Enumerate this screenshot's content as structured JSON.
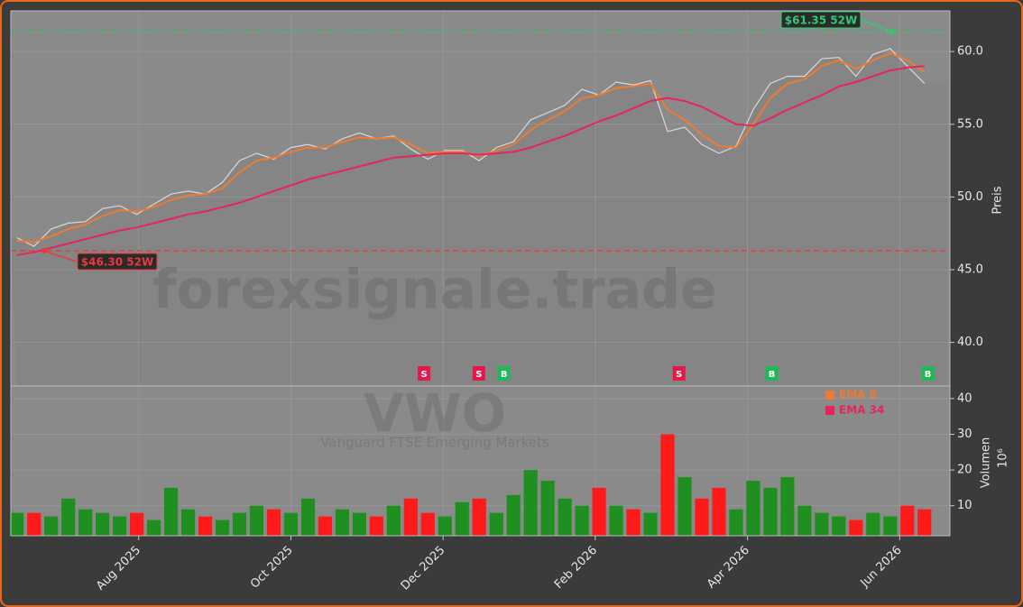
{
  "chart_data": {
    "type": "line",
    "watermark": "forexsignale.trade",
    "ticker": "VWO",
    "fund_name": "Vanguard FTSE Emerging Markets",
    "y_label": "Preis",
    "volume_label": "Volumen",
    "volume_unit": "10⁶",
    "x": [
      6.4,
      6.625,
      6.85,
      7.075,
      7.3,
      7.525,
      7.75,
      7.975,
      8.2,
      8.425,
      8.65,
      8.875,
      9.1,
      9.325,
      9.55,
      9.775,
      10,
      10.225,
      10.45,
      10.675,
      10.9,
      11.125,
      11.35,
      11.575,
      11.8,
      12.025,
      12.25,
      12.475,
      12.7,
      12.925,
      13.15,
      13.375,
      13.6,
      13.825,
      14.05,
      14.275,
      14.5,
      14.725,
      14.95,
      15.175,
      15.4,
      15.625,
      15.85,
      16.075,
      16.3,
      16.525,
      16.75,
      16.975,
      17.2,
      17.425,
      17.65,
      17.875,
      18.1,
      18.325
    ],
    "xlim": [
      6.32,
      18.66
    ],
    "xticks": [
      {
        "value": 8,
        "label": "Aug 2025"
      },
      {
        "value": 10,
        "label": "Oct 2025"
      },
      {
        "value": 12,
        "label": "Dec 2025"
      },
      {
        "value": 14,
        "label": "Feb 2026"
      },
      {
        "value": 16,
        "label": "Apr 2026"
      },
      {
        "value": 18,
        "label": "Jun 2026"
      }
    ],
    "ylim": [
      37.0,
      62.8
    ],
    "yticks": [
      {
        "value": 40,
        "label": "40.0"
      },
      {
        "value": 45,
        "label": "45.0"
      },
      {
        "value": 50,
        "label": "50.0"
      },
      {
        "value": 55,
        "label": "55.0"
      },
      {
        "value": 60,
        "label": "60.0"
      }
    ],
    "grid": true,
    "price": {
      "color": "#d8d8d8",
      "area_color": "#858585",
      "values": [
        47.2,
        46.6,
        47.8,
        48.2,
        48.3,
        49.2,
        49.4,
        48.8,
        49.5,
        50.2,
        50.4,
        50.2,
        51.0,
        52.5,
        53.0,
        52.6,
        53.4,
        53.6,
        53.3,
        54.0,
        54.4,
        54.0,
        54.2,
        53.3,
        52.6,
        53.2,
        53.2,
        52.5,
        53.4,
        53.8,
        55.3,
        55.8,
        56.3,
        57.4,
        57.0,
        57.9,
        57.7,
        58.0,
        54.5,
        54.8,
        53.6,
        53.0,
        53.5,
        56.0,
        57.8,
        58.3,
        58.3,
        59.5,
        59.6,
        58.3,
        59.8,
        60.2,
        59.0,
        57.8
      ]
    },
    "series": [
      {
        "name": "EMA 8",
        "color": "#f07a30",
        "values": [
          47.0,
          46.9,
          47.3,
          47.8,
          48.1,
          48.7,
          49.1,
          49.0,
          49.3,
          49.8,
          50.1,
          50.2,
          50.6,
          51.7,
          52.5,
          52.7,
          53.1,
          53.4,
          53.4,
          53.8,
          54.1,
          54.0,
          54.1,
          53.6,
          53.0,
          53.1,
          53.1,
          52.8,
          53.2,
          53.6,
          54.6,
          55.3,
          55.9,
          56.8,
          57.0,
          57.5,
          57.6,
          57.8,
          56.0,
          55.3,
          54.3,
          53.5,
          53.4,
          55.0,
          56.8,
          57.8,
          58.1,
          59.0,
          59.4,
          58.8,
          59.4,
          59.9,
          59.4,
          58.6
        ]
      },
      {
        "name": "EMA 34",
        "color": "#e8245e",
        "values": [
          46.0,
          46.2,
          46.5,
          46.8,
          47.1,
          47.4,
          47.7,
          47.9,
          48.2,
          48.5,
          48.8,
          49.0,
          49.3,
          49.6,
          50.0,
          50.4,
          50.8,
          51.2,
          51.5,
          51.8,
          52.1,
          52.4,
          52.7,
          52.8,
          52.9,
          53.0,
          53.0,
          52.9,
          53.0,
          53.1,
          53.4,
          53.8,
          54.2,
          54.7,
          55.2,
          55.6,
          56.1,
          56.6,
          56.8,
          56.6,
          56.2,
          55.6,
          55.0,
          54.9,
          55.4,
          56.0,
          56.5,
          57.0,
          57.6,
          57.9,
          58.3,
          58.7,
          58.9,
          59.0
        ]
      }
    ],
    "high_52w": {
      "value": 61.35,
      "label": "$61.35 52W",
      "x": 17.9,
      "color": "#2ecc71"
    },
    "low_52w": {
      "value": 46.3,
      "label": "$46.30 52W",
      "x": 6.75,
      "color": "#e83a3a"
    },
    "signals": [
      {
        "x": 11.75,
        "label": "S"
      },
      {
        "x": 12.47,
        "label": "S"
      },
      {
        "x": 12.8,
        "label": "B"
      },
      {
        "x": 15.1,
        "label": "S"
      },
      {
        "x": 16.32,
        "label": "B"
      },
      {
        "x": 18.37,
        "label": "B"
      }
    ],
    "buy_color": "#1db954",
    "sell_color": "#e8174a",
    "volume": {
      "up_color": "#1f8f1f",
      "down_color": "#ff1a1a",
      "values": [
        8,
        8,
        7,
        12,
        9,
        8,
        7,
        8,
        6,
        15,
        9,
        7,
        6,
        8,
        10,
        9,
        8,
        12,
        7,
        9,
        8,
        7,
        10,
        12,
        8,
        7,
        11,
        12,
        8,
        13,
        20,
        17,
        12,
        10,
        15,
        10,
        9,
        8,
        30,
        18,
        12,
        15,
        9,
        17,
        15,
        18,
        10,
        8,
        7,
        6,
        8,
        7,
        10,
        9
      ]
    },
    "volume_ylim": [
      1.6,
      43.5
    ],
    "volume_yticks": [
      10,
      20,
      30,
      40
    ]
  }
}
